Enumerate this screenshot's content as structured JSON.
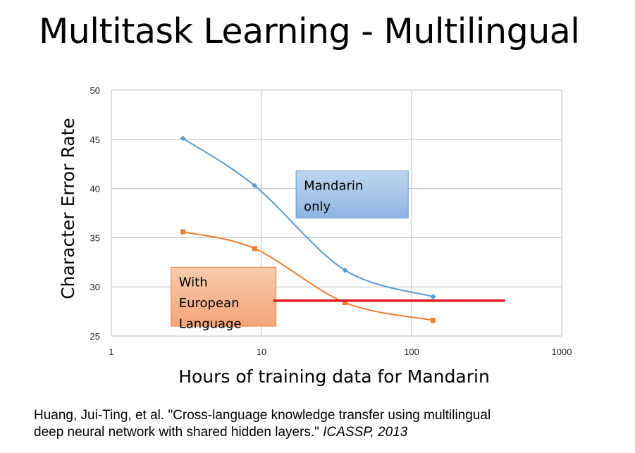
{
  "title": "Multitask Learning - Multilingual",
  "citation": {
    "text_line1": "Huang, Jui-Ting, et al. \"Cross-language knowledge transfer using multilingual",
    "text_line2": "deep neural network with shared hidden layers.\" ",
    "venue": "ICASSP, 2013"
  },
  "chart_data": {
    "type": "line",
    "xlabel": "Hours of training data for Mandarin",
    "ylabel": "Character Error Rate",
    "xscale": "log",
    "xlim": [
      1,
      1000
    ],
    "ylim": [
      25,
      50
    ],
    "xticks": [
      1,
      10,
      100,
      1000
    ],
    "yticks": [
      25,
      30,
      35,
      40,
      45,
      50
    ],
    "grid": true,
    "series": [
      {
        "name": "Mandarin only",
        "color": "#5B9BD5",
        "marker": "diamond",
        "x": [
          3,
          9,
          36,
          139
        ],
        "y": [
          45.1,
          40.3,
          31.7,
          29.0
        ]
      },
      {
        "name": "With European Language",
        "color": "#ED7D31",
        "marker": "square",
        "x": [
          3,
          9,
          36,
          139
        ],
        "y": [
          35.6,
          33.9,
          28.4,
          26.6
        ]
      }
    ],
    "reference_line": {
      "color": "#E31A1C",
      "x": [
        12,
        420
      ],
      "y": 28.6
    },
    "annotations": [
      {
        "lines": [
          "Mandarin",
          "only"
        ],
        "fill": "#9DC3E6",
        "border": "#5B9BD5",
        "x0": 17,
        "x1": 95,
        "y0": 41.8,
        "y1": 37.0
      },
      {
        "lines": [
          "With",
          "European",
          "Language"
        ],
        "fill": "#F4B183",
        "border": "#ED7D31",
        "x0": 2.5,
        "x1": 12.5,
        "y0": 32.0,
        "y1": 26.0
      }
    ]
  }
}
